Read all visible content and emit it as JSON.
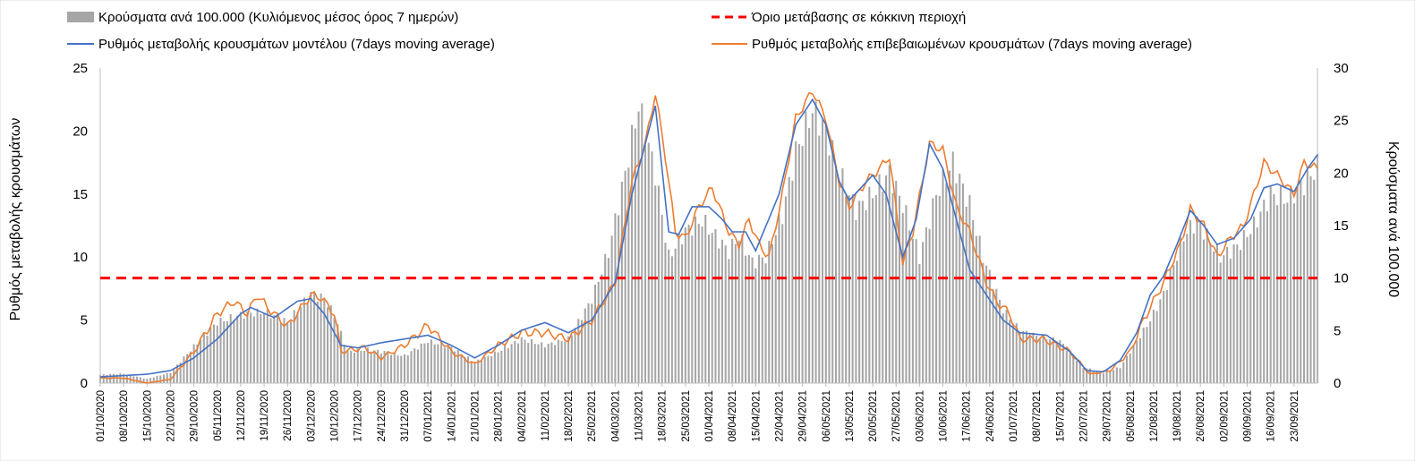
{
  "chart_data": {
    "type": "bar+line",
    "legend": {
      "bars": "Κρούσματα ανά 100.000 (Κυλιόμενος μέσος όρος 7 ημερών)",
      "threshold": "Όριο μετάβασης σε κόκκινη περιοχή",
      "model": "Ρυθμός μεταβολής κρουσμάτων μοντέλου (7days moving average)",
      "confirmed": "Ρυθμός μεταβολής επιβεβαιωμένων κρουσμάτων (7days moving average)"
    },
    "left_axis": {
      "label": "Ρυθμός μεταβολής κρουσμάτων",
      "ylim": [
        0,
        25
      ],
      "ticks": [
        "0",
        "5",
        "10",
        "15",
        "20",
        "25"
      ]
    },
    "right_axis": {
      "label": "Κρούσματα ανά 100.000",
      "ylim": [
        0,
        30
      ],
      "ticks": [
        "0",
        "5",
        "10",
        "15",
        "20",
        "25",
        "30"
      ]
    },
    "threshold_right_axis": 10,
    "x_start": "2020-10-01",
    "x_end": "2021-09-30",
    "x_tick_labels": [
      "01/10/2020",
      "08/10/2020",
      "15/10/2020",
      "22/10/2020",
      "29/10/2020",
      "05/11/2020",
      "12/11/2020",
      "19/11/2020",
      "26/11/2020",
      "03/12/2020",
      "10/12/2020",
      "17/12/2020",
      "24/12/2020",
      "31/12/2020",
      "07/01/2021",
      "14/01/2021",
      "21/01/2021",
      "28/01/2021",
      "04/02/2021",
      "11/02/2021",
      "18/02/2021",
      "25/02/2021",
      "04/03/2021",
      "11/03/2021",
      "18/03/2021",
      "25/03/2021",
      "01/04/2021",
      "08/04/2021",
      "15/04/2021",
      "22/04/2021",
      "29/04/2021",
      "06/05/2021",
      "13/05/2021",
      "20/05/2021",
      "27/05/2021",
      "03/06/2021",
      "10/06/2021",
      "17/06/2021",
      "24/06/2021",
      "01/07/2021",
      "08/07/2021",
      "15/07/2021",
      "22/07/2021",
      "29/07/2021",
      "05/08/2021",
      "12/08/2021",
      "19/08/2021",
      "26/08/2021",
      "02/09/2021",
      "09/09/2021",
      "16/09/2021",
      "23/09/2021"
    ],
    "bar_anchors_right_axis": [
      [
        0,
        0.8
      ],
      [
        7,
        0.9
      ],
      [
        14,
        0.4
      ],
      [
        21,
        1.0
      ],
      [
        28,
        3.5
      ],
      [
        35,
        5.8
      ],
      [
        42,
        6.5
      ],
      [
        49,
        6.8
      ],
      [
        56,
        5.8
      ],
      [
        63,
        8.5
      ],
      [
        67,
        8.0
      ],
      [
        70,
        6.5
      ],
      [
        74,
        3.0
      ],
      [
        80,
        3.2
      ],
      [
        84,
        3.0
      ],
      [
        91,
        2.6
      ],
      [
        98,
        4.0
      ],
      [
        105,
        3.4
      ],
      [
        112,
        2.0
      ],
      [
        119,
        3.0
      ],
      [
        126,
        4.2
      ],
      [
        133,
        3.6
      ],
      [
        140,
        4.2
      ],
      [
        147,
        8.0
      ],
      [
        152,
        12.5
      ],
      [
        157,
        20
      ],
      [
        161,
        26.5
      ],
      [
        166,
        20
      ],
      [
        170,
        12.0
      ],
      [
        175,
        14.5
      ],
      [
        180,
        15.5
      ],
      [
        184,
        14.0
      ],
      [
        188,
        12.5
      ],
      [
        191,
        14.0
      ],
      [
        195,
        11.5
      ],
      [
        199,
        12.0
      ],
      [
        204,
        16
      ],
      [
        208,
        22
      ],
      [
        213,
        26.0
      ],
      [
        217,
        24.0
      ],
      [
        221,
        20.0
      ],
      [
        226,
        16.5
      ],
      [
        231,
        18.0
      ],
      [
        236,
        20.0
      ],
      [
        240,
        17.0
      ],
      [
        245,
        12.0
      ],
      [
        250,
        18.0
      ],
      [
        255,
        21.0
      ],
      [
        260,
        17.0
      ],
      [
        264,
        12.0
      ],
      [
        270,
        7.0
      ],
      [
        275,
        5.0
      ],
      [
        280,
        4.5
      ],
      [
        287,
        4.0
      ],
      [
        294,
        1.5
      ],
      [
        300,
        1.0
      ],
      [
        305,
        1.5
      ],
      [
        310,
        4.0
      ],
      [
        314,
        6.0
      ],
      [
        318,
        8.5
      ],
      [
        324,
        14.0
      ],
      [
        328,
        15.5
      ],
      [
        332,
        13.5
      ],
      [
        335,
        12.0
      ],
      [
        340,
        13.0
      ],
      [
        345,
        15.0
      ],
      [
        350,
        18.0
      ],
      [
        355,
        17.5
      ],
      [
        360,
        19.0
      ],
      [
        365,
        21.0
      ],
      [
        370,
        23.0
      ],
      [
        375,
        26.0
      ],
      [
        380,
        24.0
      ],
      [
        385,
        20.0
      ],
      [
        390,
        19.0
      ],
      [
        395,
        17.0
      ],
      [
        399,
        9.0
      ],
      [
        402,
        4.0
      ]
    ],
    "model_anchors_left_axis": [
      [
        0,
        0.5
      ],
      [
        14,
        0.7
      ],
      [
        21,
        1.0
      ],
      [
        28,
        2.0
      ],
      [
        35,
        3.5
      ],
      [
        42,
        5.5
      ],
      [
        45,
        6.0
      ],
      [
        52,
        5.2
      ],
      [
        59,
        6.5
      ],
      [
        63,
        6.7
      ],
      [
        67,
        5.5
      ],
      [
        72,
        3.0
      ],
      [
        77,
        2.8
      ],
      [
        84,
        3.2
      ],
      [
        91,
        3.5
      ],
      [
        98,
        3.8
      ],
      [
        105,
        3.0
      ],
      [
        112,
        2.0
      ],
      [
        119,
        3.0
      ],
      [
        126,
        4.2
      ],
      [
        133,
        4.8
      ],
      [
        140,
        4.0
      ],
      [
        147,
        5.0
      ],
      [
        154,
        8.0
      ],
      [
        159,
        15.0
      ],
      [
        166,
        22.0
      ],
      [
        170,
        12.0
      ],
      [
        173,
        11.8
      ],
      [
        177,
        14.0
      ],
      [
        182,
        14.0
      ],
      [
        186,
        13.0
      ],
      [
        189,
        12.0
      ],
      [
        193,
        12.0
      ],
      [
        196,
        10.5
      ],
      [
        203,
        15.0
      ],
      [
        208,
        20.5
      ],
      [
        213,
        22.5
      ],
      [
        217,
        20.5
      ],
      [
        221,
        16.0
      ],
      [
        224,
        14.5
      ],
      [
        231,
        16.5
      ],
      [
        235,
        15.0
      ],
      [
        240,
        10.0
      ],
      [
        244,
        13.0
      ],
      [
        248,
        19.0
      ],
      [
        252,
        17.0
      ],
      [
        256,
        13.0
      ],
      [
        260,
        9.0
      ],
      [
        265,
        7.0
      ],
      [
        270,
        5.0
      ],
      [
        275,
        4.0
      ],
      [
        283,
        3.8
      ],
      [
        290,
        2.5
      ],
      [
        295,
        1.0
      ],
      [
        300,
        0.9
      ],
      [
        305,
        1.8
      ],
      [
        310,
        4.0
      ],
      [
        314,
        7.0
      ],
      [
        318,
        8.5
      ],
      [
        322,
        11.0
      ],
      [
        326,
        13.7
      ],
      [
        330,
        12.5
      ],
      [
        334,
        11.0
      ],
      [
        339,
        11.5
      ],
      [
        344,
        13.0
      ],
      [
        348,
        15.5
      ],
      [
        352,
        15.8
      ],
      [
        357,
        15.2
      ],
      [
        361,
        17.0
      ],
      [
        365,
        18.5
      ],
      [
        370,
        16.5
      ],
      [
        375,
        20.0
      ],
      [
        379,
        22.0
      ],
      [
        383,
        19.0
      ],
      [
        387,
        17.0
      ],
      [
        390,
        16.5
      ],
      [
        395,
        16.0
      ],
      [
        398,
        13.0
      ],
      [
        402,
        5.0
      ]
    ],
    "confirmed_anchors_left_axis": [
      [
        0,
        0.4
      ],
      [
        7,
        0.4
      ],
      [
        14,
        0.0
      ],
      [
        21,
        0.3
      ],
      [
        28,
        2.5
      ],
      [
        35,
        5.5
      ],
      [
        40,
        6.5
      ],
      [
        44,
        5.5
      ],
      [
        47,
        7.0
      ],
      [
        50,
        6.0
      ],
      [
        56,
        4.5
      ],
      [
        63,
        7.0
      ],
      [
        66,
        6.8
      ],
      [
        70,
        5.5
      ],
      [
        72,
        2.5
      ],
      [
        79,
        2.8
      ],
      [
        84,
        2.0
      ],
      [
        91,
        3.0
      ],
      [
        98,
        4.6
      ],
      [
        105,
        2.5
      ],
      [
        112,
        1.5
      ],
      [
        119,
        3.0
      ],
      [
        126,
        4.0
      ],
      [
        133,
        4.0
      ],
      [
        140,
        3.5
      ],
      [
        147,
        5.0
      ],
      [
        154,
        8.0
      ],
      [
        159,
        16.0
      ],
      [
        163,
        19.0
      ],
      [
        166,
        23.0
      ],
      [
        169,
        18.0
      ],
      [
        172,
        12.0
      ],
      [
        175,
        11.5
      ],
      [
        179,
        14.0
      ],
      [
        183,
        15.5
      ],
      [
        188,
        12.0
      ],
      [
        191,
        11.0
      ],
      [
        194,
        13.0
      ],
      [
        197,
        11.0
      ],
      [
        200,
        10.0
      ],
      [
        204,
        15.0
      ],
      [
        208,
        21.0
      ],
      [
        213,
        23.2
      ],
      [
        217,
        21.0
      ],
      [
        221,
        16.0
      ],
      [
        224,
        14.0
      ],
      [
        229,
        16.0
      ],
      [
        233,
        17.0
      ],
      [
        236,
        18.0
      ],
      [
        240,
        9.5
      ],
      [
        243,
        12.0
      ],
      [
        248,
        19.0
      ],
      [
        252,
        18.5
      ],
      [
        256,
        14.0
      ],
      [
        260,
        12.0
      ],
      [
        265,
        8.0
      ],
      [
        268,
        6.5
      ],
      [
        272,
        5.5
      ],
      [
        275,
        3.5
      ],
      [
        282,
        3.5
      ],
      [
        290,
        2.5
      ],
      [
        296,
        0.7
      ],
      [
        302,
        1.0
      ],
      [
        308,
        2.5
      ],
      [
        312,
        5.0
      ],
      [
        318,
        8.0
      ],
      [
        323,
        11.0
      ],
      [
        326,
        13.8
      ],
      [
        330,
        12.5
      ],
      [
        334,
        10.0
      ],
      [
        338,
        11.5
      ],
      [
        342,
        12.5
      ],
      [
        348,
        17.5
      ],
      [
        352,
        16.5
      ],
      [
        357,
        15.0
      ],
      [
        360,
        17.5
      ],
      [
        364,
        17.0
      ],
      [
        368,
        19.0
      ],
      [
        371,
        17.5
      ],
      [
        375,
        22.0
      ],
      [
        379,
        23.0
      ],
      [
        382,
        20.0
      ],
      [
        385,
        18.0
      ],
      [
        388,
        17.0
      ],
      [
        393,
        16.0
      ],
      [
        396,
        16.5
      ],
      [
        399,
        11.0
      ],
      [
        402,
        5.0
      ]
    ]
  }
}
